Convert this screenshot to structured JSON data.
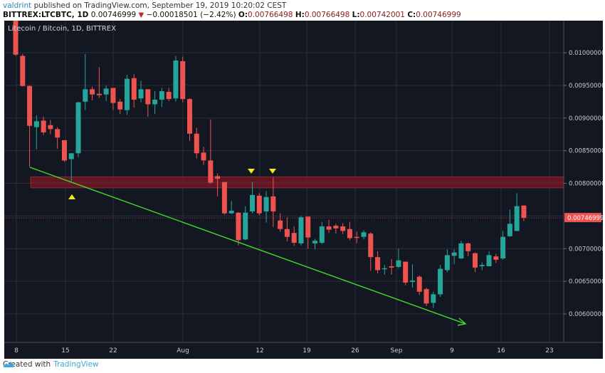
{
  "header": {
    "author": "valdrint",
    "published_text": " published on TradingView.com, September 19, 2019 10:20:02 CEST",
    "symbol": "BITTREX:LTCBTC, 1D",
    "last": "0.00746999",
    "change_icon": "triangle-down-icon",
    "change": "−0.00018501 (−2.42%)",
    "open_label": "O:",
    "open": "0.00766498",
    "high_label": "H:",
    "high": "0.00766498",
    "low_label": "L:",
    "low": "0.00742001",
    "close_label": "C:",
    "close": "0.00746999"
  },
  "footer": {
    "created_with": "Created with",
    "brand": "TradingView",
    "logo_icon": "tradingview-logo-icon"
  },
  "colors": {
    "background": "#131722",
    "up": "#26a69a",
    "down": "#ef5350",
    "grid": "#2a2e39",
    "support_zone": "#7a1a24",
    "trendline": "#3fdc2a",
    "marker": "#f5e51b",
    "last_price_label": "#ef5350"
  },
  "chart_data": {
    "type": "candlestick",
    "title": "Litecoin / Bitcoin, 1D, BITTREX",
    "xlabel": "",
    "ylabel": "",
    "ylim": [
      0.0057,
      0.0104
    ],
    "grid": true,
    "x_ticks": [
      "8",
      "15",
      "22",
      "Aug",
      "12",
      "19",
      "26",
      "Sep",
      "9",
      "16",
      "23"
    ],
    "y_ticks": [
      "0.01000000",
      "0.00950000",
      "0.00900000",
      "0.00850000",
      "0.00800000",
      "0.00700000",
      "0.00650000",
      "0.00600000"
    ],
    "last_price_label": "0.00746999",
    "support_zone": {
      "low": 0.00793,
      "high": 0.0081
    },
    "trendline": {
      "from": {
        "date": "Jul 10",
        "price": 0.00826
      },
      "to": {
        "date": "Sep 10",
        "price": 0.00588
      },
      "arrow": true
    },
    "markers": [
      {
        "type": "up-triangle",
        "date": "Jul 16",
        "position": "below"
      },
      {
        "type": "down-triangle",
        "date": "Aug 10",
        "position": "above"
      },
      {
        "type": "down-triangle",
        "date": "Aug 13",
        "position": "above"
      }
    ],
    "candles": [
      {
        "d": "Jul 8",
        "o": 0.01054,
        "h": 0.0106,
        "l": 0.00995,
        "c": 0.00997
      },
      {
        "d": "Jul 9",
        "o": 0.00995,
        "h": 0.00998,
        "l": 0.00948,
        "c": 0.00949
      },
      {
        "d": "Jul 10",
        "o": 0.00949,
        "h": 0.0095,
        "l": 0.00825,
        "c": 0.00888
      },
      {
        "d": "Jul 11",
        "o": 0.00886,
        "h": 0.00904,
        "l": 0.00852,
        "c": 0.00895
      },
      {
        "d": "Jul 12",
        "o": 0.00896,
        "h": 0.00902,
        "l": 0.00874,
        "c": 0.00878
      },
      {
        "d": "Jul 13",
        "o": 0.00889,
        "h": 0.00897,
        "l": 0.00875,
        "c": 0.00883
      },
      {
        "d": "Jul 14",
        "o": 0.00883,
        "h": 0.00886,
        "l": 0.00853,
        "c": 0.0087
      },
      {
        "d": "Jul 15",
        "o": 0.00866,
        "h": 0.00866,
        "l": 0.00833,
        "c": 0.00835
      },
      {
        "d": "Jul 16",
        "o": 0.00837,
        "h": 0.00846,
        "l": 0.00803,
        "c": 0.00846
      },
      {
        "d": "Jul 17",
        "o": 0.00846,
        "h": 0.00925,
        "l": 0.0084,
        "c": 0.00924
      },
      {
        "d": "Jul 18",
        "o": 0.00925,
        "h": 0.00998,
        "l": 0.00912,
        "c": 0.00944
      },
      {
        "d": "Jul 19",
        "o": 0.00944,
        "h": 0.00948,
        "l": 0.00927,
        "c": 0.00936
      },
      {
        "d": "Jul 20",
        "o": 0.00937,
        "h": 0.00978,
        "l": 0.00931,
        "c": 0.00935
      },
      {
        "d": "Jul 21",
        "o": 0.00936,
        "h": 0.0095,
        "l": 0.00926,
        "c": 0.00945
      },
      {
        "d": "Jul 22",
        "o": 0.00946,
        "h": 0.00946,
        "l": 0.00912,
        "c": 0.00923
      },
      {
        "d": "Jul 23",
        "o": 0.00925,
        "h": 0.00929,
        "l": 0.00906,
        "c": 0.00913
      },
      {
        "d": "Jul 24",
        "o": 0.00912,
        "h": 0.00966,
        "l": 0.00905,
        "c": 0.0096
      },
      {
        "d": "Jul 25",
        "o": 0.00961,
        "h": 0.00967,
        "l": 0.00916,
        "c": 0.00928
      },
      {
        "d": "Jul 26",
        "o": 0.0093,
        "h": 0.00957,
        "l": 0.00924,
        "c": 0.00944
      },
      {
        "d": "Jul 27",
        "o": 0.00944,
        "h": 0.00944,
        "l": 0.00902,
        "c": 0.00921
      },
      {
        "d": "Jul 28",
        "o": 0.00921,
        "h": 0.00941,
        "l": 0.00906,
        "c": 0.00928
      },
      {
        "d": "Jul 29",
        "o": 0.00928,
        "h": 0.00946,
        "l": 0.00917,
        "c": 0.00941
      },
      {
        "d": "Jul 30",
        "o": 0.0094,
        "h": 0.00946,
        "l": 0.00926,
        "c": 0.00929
      },
      {
        "d": "Jul 31",
        "o": 0.0093,
        "h": 0.00995,
        "l": 0.00925,
        "c": 0.00988
      },
      {
        "d": "Aug 1",
        "o": 0.00987,
        "h": 0.00994,
        "l": 0.00924,
        "c": 0.00929
      },
      {
        "d": "Aug 2",
        "o": 0.00929,
        "h": 0.0093,
        "l": 0.00865,
        "c": 0.00876
      },
      {
        "d": "Aug 3",
        "o": 0.00876,
        "h": 0.00885,
        "l": 0.00838,
        "c": 0.00846
      },
      {
        "d": "Aug 4",
        "o": 0.00847,
        "h": 0.00856,
        "l": 0.00828,
        "c": 0.00835
      },
      {
        "d": "Aug 5",
        "o": 0.00835,
        "h": 0.00898,
        "l": 0.00799,
        "c": 0.00801
      },
      {
        "d": "Aug 6",
        "o": 0.00811,
        "h": 0.00815,
        "l": 0.0078,
        "c": 0.00807
      },
      {
        "d": "Aug 7",
        "o": 0.00802,
        "h": 0.00802,
        "l": 0.00752,
        "c": 0.00754
      },
      {
        "d": "Aug 8",
        "o": 0.00754,
        "h": 0.00773,
        "l": 0.00753,
        "c": 0.00758
      },
      {
        "d": "Aug 9",
        "o": 0.00755,
        "h": 0.00756,
        "l": 0.00705,
        "c": 0.00713
      },
      {
        "d": "Aug 10",
        "o": 0.00714,
        "h": 0.00765,
        "l": 0.00713,
        "c": 0.00755
      },
      {
        "d": "Aug 11",
        "o": 0.00757,
        "h": 0.00802,
        "l": 0.00754,
        "c": 0.00782
      },
      {
        "d": "Aug 12",
        "o": 0.00781,
        "h": 0.00785,
        "l": 0.00751,
        "c": 0.00754
      },
      {
        "d": "Aug 13",
        "o": 0.00757,
        "h": 0.00788,
        "l": 0.0074,
        "c": 0.00779
      },
      {
        "d": "Aug 14",
        "o": 0.0078,
        "h": 0.00809,
        "l": 0.00733,
        "c": 0.00757
      },
      {
        "d": "Aug 15",
        "o": 0.00743,
        "h": 0.00754,
        "l": 0.00726,
        "c": 0.0073
      },
      {
        "d": "Aug 16",
        "o": 0.0073,
        "h": 0.00748,
        "l": 0.00711,
        "c": 0.00718
      },
      {
        "d": "Aug 17",
        "o": 0.00724,
        "h": 0.00734,
        "l": 0.00704,
        "c": 0.00709
      },
      {
        "d": "Aug 18",
        "o": 0.00708,
        "h": 0.0075,
        "l": 0.00705,
        "c": 0.00748
      },
      {
        "d": "Aug 19",
        "o": 0.00749,
        "h": 0.00749,
        "l": 0.007,
        "c": 0.00717
      },
      {
        "d": "Aug 20",
        "o": 0.00708,
        "h": 0.00715,
        "l": 0.00699,
        "c": 0.00712
      },
      {
        "d": "Aug 21",
        "o": 0.00709,
        "h": 0.00741,
        "l": 0.00707,
        "c": 0.00734
      },
      {
        "d": "Aug 22",
        "o": 0.00734,
        "h": 0.00744,
        "l": 0.00724,
        "c": 0.00729
      },
      {
        "d": "Aug 23",
        "o": 0.00735,
        "h": 0.00738,
        "l": 0.00723,
        "c": 0.00731
      },
      {
        "d": "Aug 24",
        "o": 0.00734,
        "h": 0.00739,
        "l": 0.00722,
        "c": 0.00727
      },
      {
        "d": "Aug 25",
        "o": 0.0073,
        "h": 0.00741,
        "l": 0.00713,
        "c": 0.00716
      },
      {
        "d": "Aug 26",
        "o": 0.00718,
        "h": 0.00726,
        "l": 0.00708,
        "c": 0.00717
      },
      {
        "d": "Aug 27",
        "o": 0.00718,
        "h": 0.00728,
        "l": 0.00714,
        "c": 0.00725
      },
      {
        "d": "Aug 28",
        "o": 0.00723,
        "h": 0.00725,
        "l": 0.00666,
        "c": 0.00687
      },
      {
        "d": "Aug 29",
        "o": 0.00687,
        "h": 0.00696,
        "l": 0.00662,
        "c": 0.00667
      },
      {
        "d": "Aug 30",
        "o": 0.00669,
        "h": 0.00675,
        "l": 0.0066,
        "c": 0.0067
      },
      {
        "d": "Aug 31",
        "o": 0.00673,
        "h": 0.00684,
        "l": 0.0066,
        "c": 0.00671
      },
      {
        "d": "Sep 1",
        "o": 0.00672,
        "h": 0.007,
        "l": 0.0067,
        "c": 0.00682
      },
      {
        "d": "Sep 2",
        "o": 0.0068,
        "h": 0.0068,
        "l": 0.00644,
        "c": 0.00648
      },
      {
        "d": "Sep 3",
        "o": 0.00649,
        "h": 0.00676,
        "l": 0.0064,
        "c": 0.00651
      },
      {
        "d": "Sep 4",
        "o": 0.00657,
        "h": 0.00659,
        "l": 0.00629,
        "c": 0.00634
      },
      {
        "d": "Sep 5",
        "o": 0.00638,
        "h": 0.0064,
        "l": 0.00612,
        "c": 0.00616
      },
      {
        "d": "Sep 6",
        "o": 0.00617,
        "h": 0.00634,
        "l": 0.00609,
        "c": 0.0063
      },
      {
        "d": "Sep 7",
        "o": 0.0063,
        "h": 0.00675,
        "l": 0.00626,
        "c": 0.00669
      },
      {
        "d": "Sep 8",
        "o": 0.00667,
        "h": 0.00699,
        "l": 0.00664,
        "c": 0.0069
      },
      {
        "d": "Sep 9",
        "o": 0.00689,
        "h": 0.00699,
        "l": 0.00676,
        "c": 0.00694
      },
      {
        "d": "Sep 10",
        "o": 0.00685,
        "h": 0.00712,
        "l": 0.00684,
        "c": 0.00708
      },
      {
        "d": "Sep 11",
        "o": 0.00708,
        "h": 0.00709,
        "l": 0.00688,
        "c": 0.00696
      },
      {
        "d": "Sep 12",
        "o": 0.00693,
        "h": 0.00694,
        "l": 0.00664,
        "c": 0.00671
      },
      {
        "d": "Sep 13",
        "o": 0.00673,
        "h": 0.00679,
        "l": 0.00667,
        "c": 0.00675
      },
      {
        "d": "Sep 14",
        "o": 0.00673,
        "h": 0.00696,
        "l": 0.00674,
        "c": 0.0069
      },
      {
        "d": "Sep 15",
        "o": 0.00688,
        "h": 0.00692,
        "l": 0.00678,
        "c": 0.00683
      },
      {
        "d": "Sep 16",
        "o": 0.00685,
        "h": 0.00727,
        "l": 0.00683,
        "c": 0.00718
      },
      {
        "d": "Sep 17",
        "o": 0.00719,
        "h": 0.0076,
        "l": 0.00718,
        "c": 0.00738
      },
      {
        "d": "Sep 18",
        "o": 0.00727,
        "h": 0.00785,
        "l": 0.00727,
        "c": 0.00765
      },
      {
        "d": "Sep 19",
        "o": 0.00766,
        "h": 0.00766,
        "l": 0.00742,
        "c": 0.00747
      }
    ]
  }
}
